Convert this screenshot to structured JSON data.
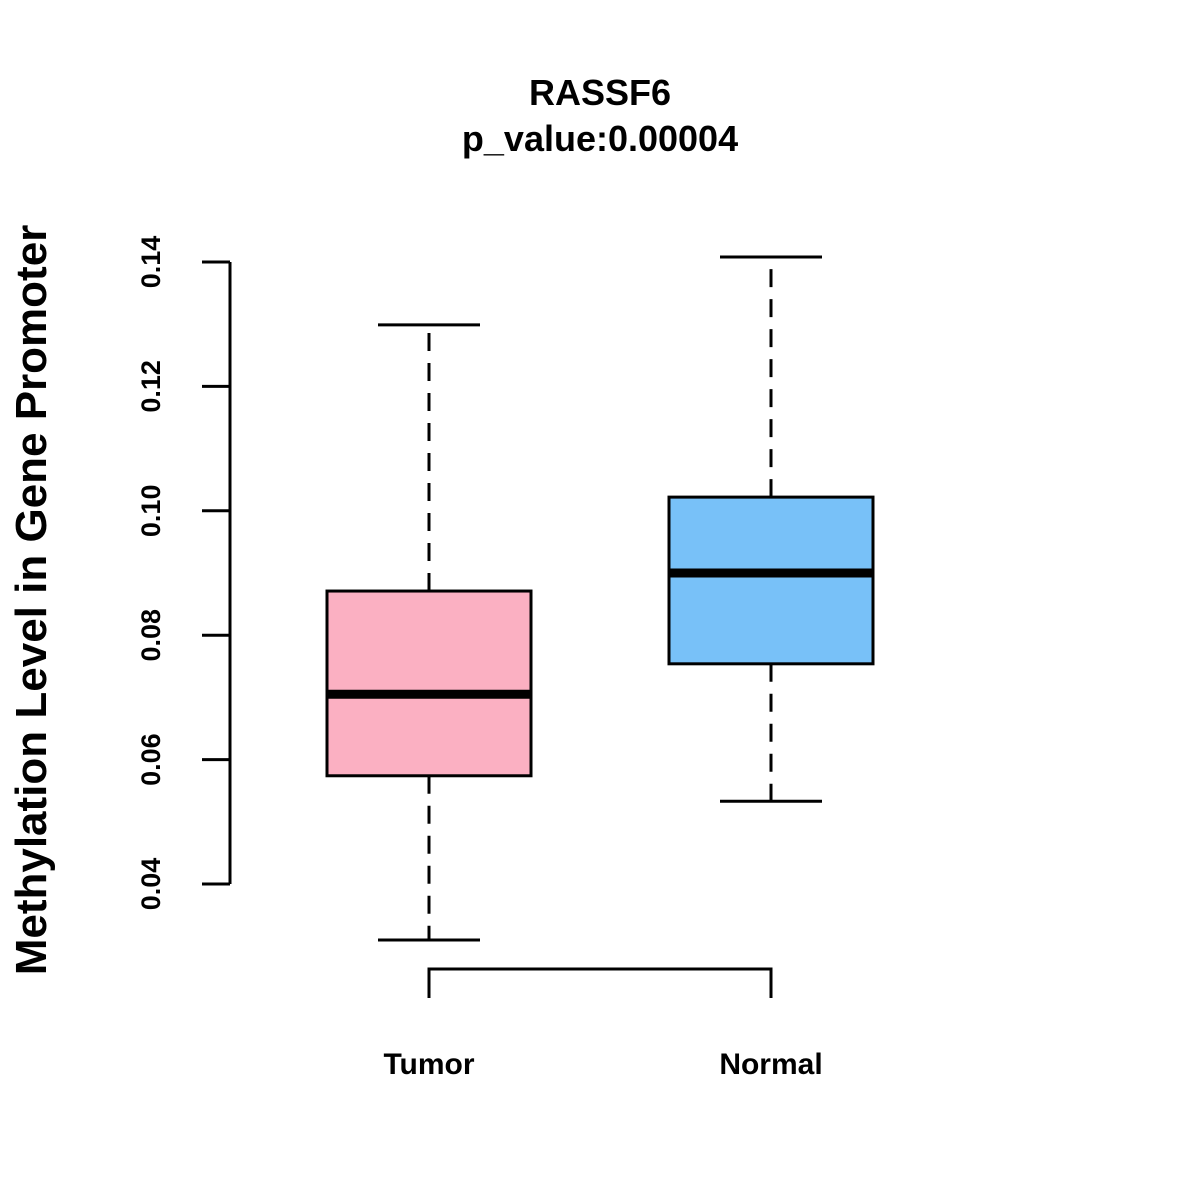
{
  "chart_data": {
    "type": "box",
    "title": "RASSF6",
    "subtitle": "p_value:0.00004",
    "xlabel": "",
    "ylabel": "Methylation Level in Gene Promoter",
    "ylim": [
      0.04,
      0.14
    ],
    "yticks": [
      "0.04",
      "0.06",
      "0.08",
      "0.10",
      "0.12",
      "0.14"
    ],
    "ytick_values": [
      0.04,
      0.06,
      0.08,
      0.1,
      0.12,
      0.14
    ],
    "categories": [
      "Tumor",
      "Normal"
    ],
    "boxes": [
      {
        "name": "Tumor",
        "min": 0.031,
        "q1": 0.0574,
        "median": 0.0705,
        "q3": 0.0871,
        "max": 0.1299,
        "color": "#FBB0C2"
      },
      {
        "name": "Normal",
        "min": 0.0533,
        "q1": 0.0754,
        "median": 0.09,
        "q3": 0.1022,
        "max": 0.1408,
        "color": "#78C1F8"
      }
    ],
    "comparison_bracket": {
      "from": "Tumor",
      "to": "Normal"
    },
    "grid": false,
    "legend": "none"
  }
}
